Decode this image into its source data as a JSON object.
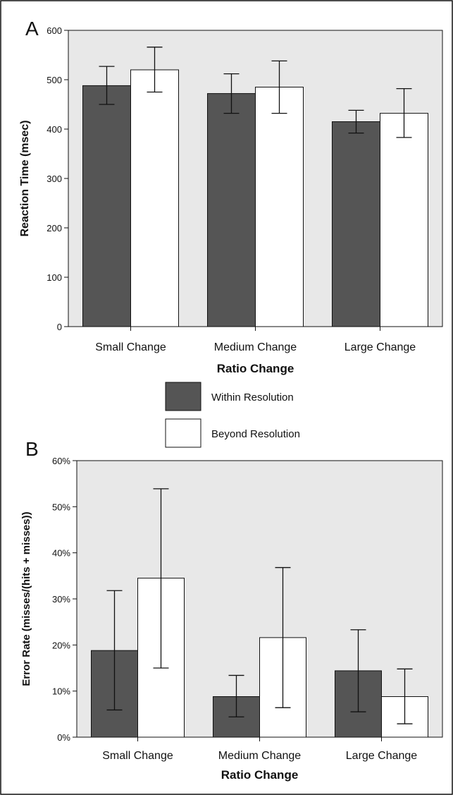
{
  "colors": {
    "within": "#555555",
    "beyond": "#ffffff",
    "plot_bg": "#e8e8e8",
    "frame": "#111111"
  },
  "legend": {
    "items": [
      {
        "label": "Within Resolution",
        "color": "#555555"
      },
      {
        "label": "Beyond Resolution",
        "color": "#ffffff"
      }
    ]
  },
  "chart_data": [
    {
      "panel": "A",
      "type": "bar",
      "title": "",
      "xlabel": "Ratio Change",
      "ylabel": "Reaction Time (msec)",
      "categories": [
        "Small Change",
        "Medium Change",
        "Large Change"
      ],
      "ylim": [
        0,
        600
      ],
      "yticks": [
        0,
        100,
        200,
        300,
        400,
        500,
        600
      ],
      "ytick_labels": [
        "0",
        "100",
        "200",
        "300",
        "400",
        "500",
        "600"
      ],
      "grid": false,
      "series": [
        {
          "name": "Within Resolution",
          "values": [
            488,
            472,
            415
          ],
          "err_low": [
            450,
            432,
            392
          ],
          "err_high": [
            527,
            512,
            438
          ]
        },
        {
          "name": "Beyond Resolution",
          "values": [
            520,
            485,
            432
          ],
          "err_low": [
            475,
            432,
            383
          ],
          "err_high": [
            566,
            538,
            482
          ]
        }
      ]
    },
    {
      "panel": "B",
      "type": "bar",
      "title": "",
      "xlabel": "Ratio Change",
      "ylabel": "Error Rate (misses/(hits + misses))",
      "categories": [
        "Small Change",
        "Medium Change",
        "Large Change"
      ],
      "ylim": [
        0,
        60
      ],
      "yticks": [
        0,
        10,
        20,
        30,
        40,
        50,
        60
      ],
      "ytick_labels": [
        "0%",
        "10%",
        "20%",
        "30%",
        "40%",
        "50%",
        "60%"
      ],
      "grid": false,
      "series": [
        {
          "name": "Within Resolution",
          "values": [
            18.8,
            8.8,
            14.4
          ],
          "err_low": [
            5.9,
            4.4,
            5.5
          ],
          "err_high": [
            31.8,
            13.4,
            23.3
          ]
        },
        {
          "name": "Beyond Resolution",
          "values": [
            34.5,
            21.6,
            8.8
          ],
          "err_low": [
            15.0,
            6.4,
            2.9
          ],
          "err_high": [
            53.9,
            36.8,
            14.8
          ]
        }
      ]
    }
  ]
}
